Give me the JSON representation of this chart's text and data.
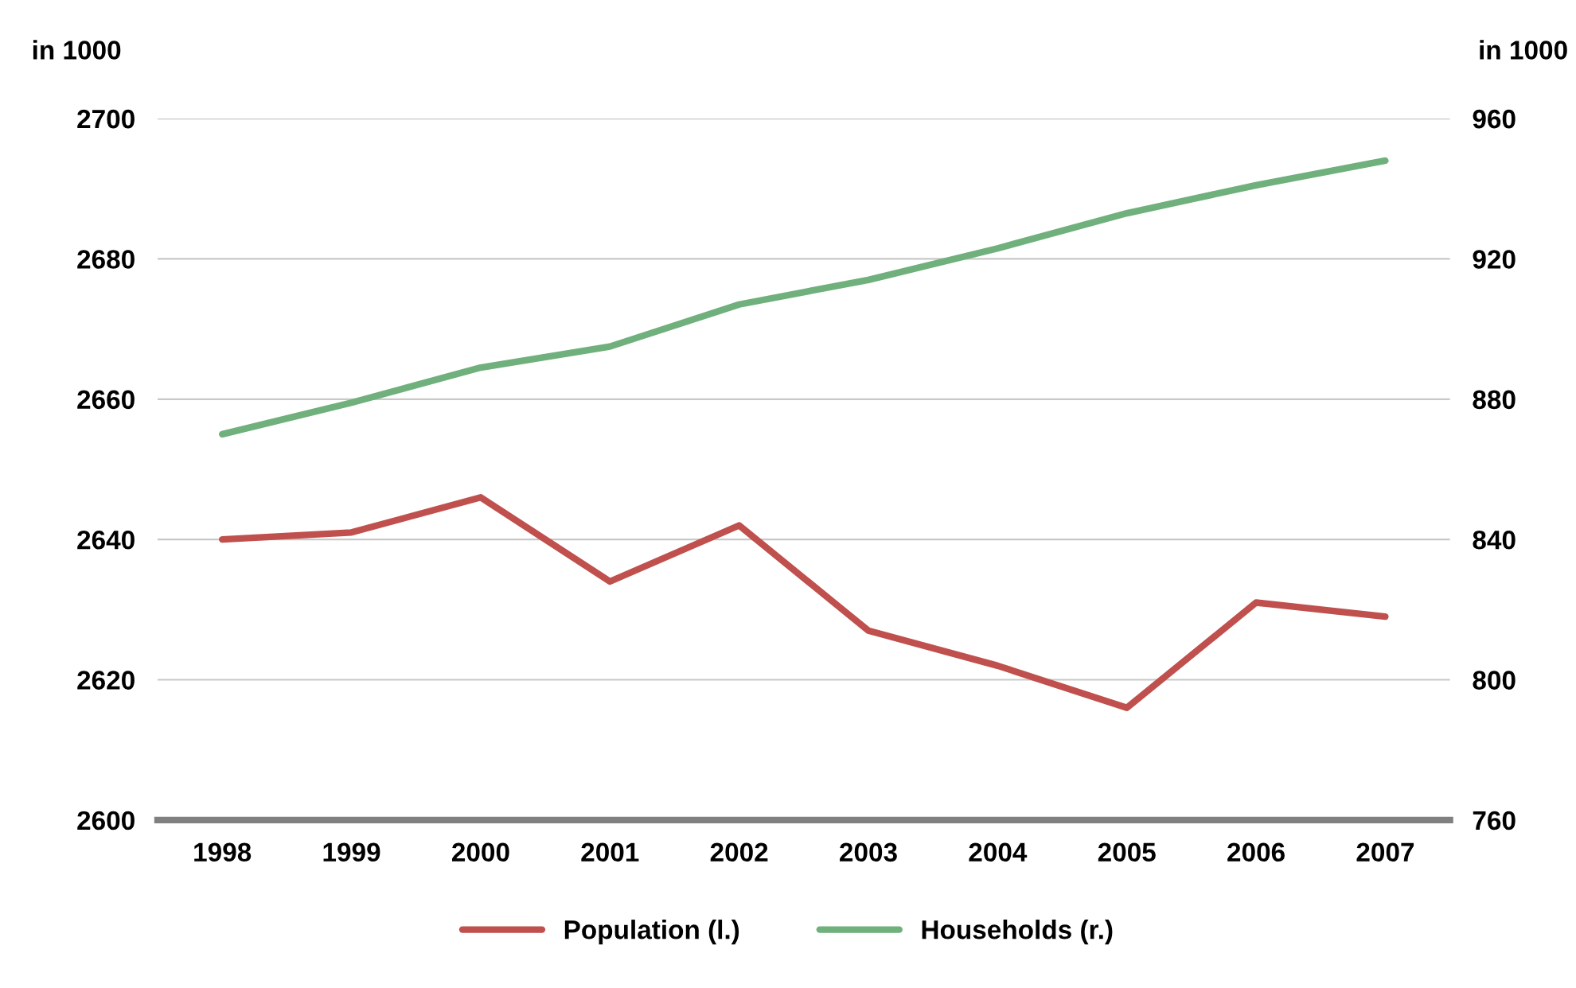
{
  "chart_data": {
    "type": "line",
    "categories": [
      "1998",
      "1999",
      "2000",
      "2001",
      "2002",
      "2003",
      "2004",
      "2005",
      "2006",
      "2007"
    ],
    "series": [
      {
        "name": "Population (l.)",
        "color": "#c0504d",
        "values": [
          2640,
          2641,
          2646,
          2634,
          2642,
          2627,
          2622,
          2616,
          2631,
          2629
        ]
      },
      {
        "name": "Households (r.)",
        "color": "#6fb07c",
        "axis": "y2",
        "values": [
          870,
          879,
          889,
          895,
          907,
          914,
          923,
          933,
          941,
          948
        ]
      }
    ],
    "ylabel": "in 1000",
    "y2label": "in 1000",
    "ylim": [
      2600,
      2700
    ],
    "yticks": [
      2600,
      2620,
      2640,
      2660,
      2680,
      2700
    ],
    "y2lim": [
      760,
      960
    ],
    "y2ticks": [
      760,
      800,
      840,
      880,
      920,
      960
    ],
    "grid": "y",
    "legend": "bottom",
    "marker": "none",
    "line_style": "solid"
  }
}
